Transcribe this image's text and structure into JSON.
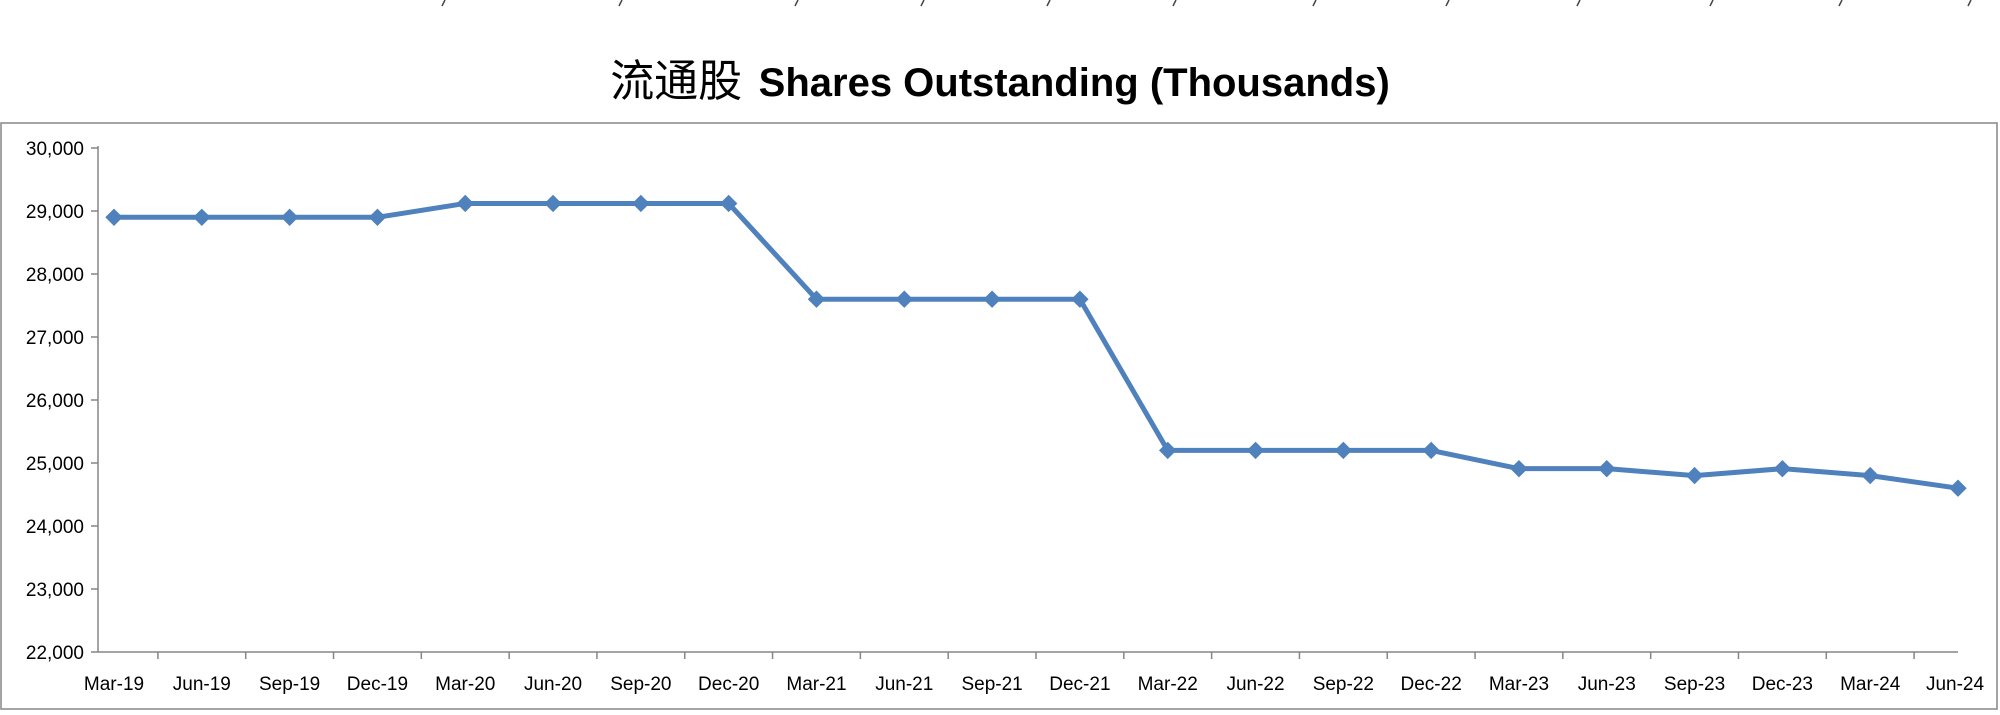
{
  "chart_data": {
    "type": "line",
    "title_cjk": "流通股",
    "title_en": "Shares Outstanding (Thousands)",
    "xlabel": "",
    "ylabel": "",
    "categories": [
      "Mar-19",
      "Jun-19",
      "Sep-19",
      "Dec-19",
      "Mar-20",
      "Jun-20",
      "Sep-20",
      "Dec-20",
      "Mar-21",
      "Jun-21",
      "Sep-21",
      "Dec-21",
      "Mar-22",
      "Jun-22",
      "Sep-22",
      "Dec-22",
      "Mar-23",
      "Jun-23",
      "Sep-23",
      "Dec-23",
      "Mar-24",
      "Jun-24"
    ],
    "series": [
      {
        "values": [
          28900,
          28900,
          28900,
          28900,
          29120,
          29120,
          29120,
          29120,
          27600,
          27600,
          27600,
          27600,
          25200,
          25200,
          25200,
          25200,
          24910,
          24910,
          24800,
          24910,
          24800,
          24600
        ]
      }
    ],
    "ylim": [
      22000,
      30000
    ],
    "y_ticks": [
      22000,
      23000,
      24000,
      25000,
      26000,
      27000,
      28000,
      29000,
      30000
    ],
    "y_tick_labels": [
      "22,000",
      "23,000",
      "24,000",
      "25,000",
      "26,000",
      "27,000",
      "28,000",
      "29,000",
      "30,000"
    ],
    "grid": false,
    "legend": "none",
    "colors": {
      "line": "#4F81BD",
      "marker": "#4F81BD",
      "axis": "#868686",
      "frame": "#868686",
      "background": "#ffffff"
    },
    "marker": "diamond"
  }
}
